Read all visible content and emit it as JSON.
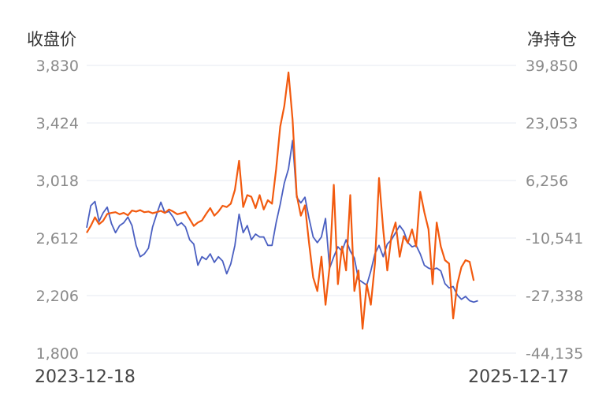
{
  "header": {
    "left_axis_title": "收盘价",
    "right_axis_title": "净持仓"
  },
  "footer": {
    "start_date": "2023-12-18",
    "end_date": "2025-12-17"
  },
  "chart_data": {
    "type": "line",
    "title": "",
    "grid": true,
    "x_range": [
      "2023-12-18",
      "2025-12-17"
    ],
    "left_axis": {
      "label": "收盘价",
      "range": [
        1800,
        3830
      ],
      "ticks": [
        "3,830",
        "3,424",
        "3,018",
        "2,612",
        "2,206",
        "1,800"
      ]
    },
    "right_axis": {
      "label": "净持仓",
      "range": [
        -44135,
        39850
      ],
      "ticks": [
        "39,850",
        "23,053",
        "6,256",
        "-10,541",
        "-27,338",
        "-44,135"
      ]
    },
    "series": [
      {
        "axis": "left",
        "color": "#4a5fc1",
        "points": [
          [
            "2023-12-18",
            2685
          ],
          [
            "2023-12-25",
            2840
          ],
          [
            "2024-01-01",
            2870
          ],
          [
            "2024-01-08",
            2730
          ],
          [
            "2024-01-15",
            2790
          ],
          [
            "2024-01-22",
            2830
          ],
          [
            "2024-01-29",
            2715
          ],
          [
            "2024-02-05",
            2650
          ],
          [
            "2024-02-12",
            2700
          ],
          [
            "2024-02-19",
            2720
          ],
          [
            "2024-02-26",
            2760
          ],
          [
            "2024-03-04",
            2700
          ],
          [
            "2024-03-11",
            2560
          ],
          [
            "2024-03-18",
            2480
          ],
          [
            "2024-03-25",
            2500
          ],
          [
            "2024-04-01",
            2540
          ],
          [
            "2024-04-08",
            2690
          ],
          [
            "2024-04-15",
            2780
          ],
          [
            "2024-04-22",
            2865
          ],
          [
            "2024-04-29",
            2790
          ],
          [
            "2024-05-06",
            2800
          ],
          [
            "2024-05-13",
            2760
          ],
          [
            "2024-05-20",
            2700
          ],
          [
            "2024-05-27",
            2720
          ],
          [
            "2024-06-03",
            2690
          ],
          [
            "2024-06-10",
            2600
          ],
          [
            "2024-06-17",
            2570
          ],
          [
            "2024-06-24",
            2420
          ],
          [
            "2024-07-01",
            2480
          ],
          [
            "2024-07-08",
            2460
          ],
          [
            "2024-07-15",
            2500
          ],
          [
            "2024-07-22",
            2440
          ],
          [
            "2024-07-29",
            2480
          ],
          [
            "2024-08-05",
            2450
          ],
          [
            "2024-08-12",
            2360
          ],
          [
            "2024-08-19",
            2430
          ],
          [
            "2024-08-26",
            2560
          ],
          [
            "2024-09-02",
            2780
          ],
          [
            "2024-09-09",
            2650
          ],
          [
            "2024-09-16",
            2700
          ],
          [
            "2024-09-23",
            2600
          ],
          [
            "2024-09-30",
            2640
          ],
          [
            "2024-10-07",
            2620
          ],
          [
            "2024-10-14",
            2620
          ],
          [
            "2024-10-21",
            2560
          ],
          [
            "2024-10-28",
            2560
          ],
          [
            "2024-11-04",
            2720
          ],
          [
            "2024-11-11",
            2850
          ],
          [
            "2024-11-18",
            3000
          ],
          [
            "2024-11-25",
            3100
          ],
          [
            "2024-12-02",
            3300
          ],
          [
            "2024-12-09",
            2900
          ],
          [
            "2024-12-16",
            2860
          ],
          [
            "2024-12-23",
            2900
          ],
          [
            "2024-12-30",
            2750
          ],
          [
            "2025-01-06",
            2620
          ],
          [
            "2025-01-13",
            2580
          ],
          [
            "2025-01-20",
            2620
          ],
          [
            "2025-01-27",
            2750
          ],
          [
            "2025-02-03",
            2400
          ],
          [
            "2025-02-10",
            2480
          ],
          [
            "2025-02-17",
            2550
          ],
          [
            "2025-02-24",
            2520
          ],
          [
            "2025-03-03",
            2600
          ],
          [
            "2025-03-10",
            2520
          ],
          [
            "2025-03-17",
            2470
          ],
          [
            "2025-03-24",
            2320
          ],
          [
            "2025-03-31",
            2300
          ],
          [
            "2025-04-07",
            2280
          ],
          [
            "2025-04-14",
            2380
          ],
          [
            "2025-04-21",
            2500
          ],
          [
            "2025-04-28",
            2560
          ],
          [
            "2025-05-05",
            2480
          ],
          [
            "2025-05-12",
            2570
          ],
          [
            "2025-05-19",
            2600
          ],
          [
            "2025-05-26",
            2650
          ],
          [
            "2025-06-02",
            2700
          ],
          [
            "2025-06-09",
            2660
          ],
          [
            "2025-06-16",
            2580
          ],
          [
            "2025-06-23",
            2550
          ],
          [
            "2025-06-30",
            2560
          ],
          [
            "2025-07-07",
            2500
          ],
          [
            "2025-07-14",
            2420
          ],
          [
            "2025-07-21",
            2400
          ],
          [
            "2025-07-28",
            2390
          ],
          [
            "2025-08-04",
            2400
          ],
          [
            "2025-08-11",
            2380
          ],
          [
            "2025-08-18",
            2290
          ],
          [
            "2025-08-25",
            2260
          ],
          [
            "2025-09-01",
            2270
          ],
          [
            "2025-09-08",
            2210
          ],
          [
            "2025-09-15",
            2180
          ],
          [
            "2025-09-22",
            2200
          ],
          [
            "2025-09-29",
            2170
          ],
          [
            "2025-10-06",
            2160
          ],
          [
            "2025-10-13",
            2170
          ]
        ]
      },
      {
        "axis": "right",
        "color": "#f25a0f",
        "points": [
          [
            "2023-12-18",
            -9000
          ],
          [
            "2023-12-25",
            -7000
          ],
          [
            "2024-01-01",
            -4500
          ],
          [
            "2024-01-08",
            -6500
          ],
          [
            "2024-01-15",
            -5500
          ],
          [
            "2024-01-22",
            -3500
          ],
          [
            "2024-01-29",
            -3200
          ],
          [
            "2024-02-05",
            -3000
          ],
          [
            "2024-02-12",
            -3600
          ],
          [
            "2024-02-19",
            -3200
          ],
          [
            "2024-02-26",
            -3900
          ],
          [
            "2024-03-04",
            -2500
          ],
          [
            "2024-03-11",
            -2800
          ],
          [
            "2024-03-18",
            -2400
          ],
          [
            "2024-03-25",
            -3000
          ],
          [
            "2024-04-01",
            -2800
          ],
          [
            "2024-04-08",
            -3300
          ],
          [
            "2024-04-15",
            -3000
          ],
          [
            "2024-04-22",
            -2600
          ],
          [
            "2024-04-29",
            -3200
          ],
          [
            "2024-05-06",
            -2200
          ],
          [
            "2024-05-13",
            -2800
          ],
          [
            "2024-05-20",
            -3600
          ],
          [
            "2024-05-27",
            -3300
          ],
          [
            "2024-06-03",
            -2900
          ],
          [
            "2024-06-10",
            -5000
          ],
          [
            "2024-06-17",
            -7000
          ],
          [
            "2024-06-24",
            -6000
          ],
          [
            "2024-07-01",
            -5400
          ],
          [
            "2024-07-08",
            -3500
          ],
          [
            "2024-07-15",
            -1800
          ],
          [
            "2024-07-22",
            -4000
          ],
          [
            "2024-07-29",
            -2800
          ],
          [
            "2024-08-05",
            -1100
          ],
          [
            "2024-08-12",
            -1500
          ],
          [
            "2024-08-19",
            -500
          ],
          [
            "2024-08-26",
            3500
          ],
          [
            "2024-09-02",
            12000
          ],
          [
            "2024-09-09",
            -1500
          ],
          [
            "2024-09-16",
            2000
          ],
          [
            "2024-09-23",
            1500
          ],
          [
            "2024-09-30",
            -1800
          ],
          [
            "2024-10-07",
            2000
          ],
          [
            "2024-10-14",
            -2200
          ],
          [
            "2024-10-21",
            500
          ],
          [
            "2024-10-28",
            -500
          ],
          [
            "2024-11-04",
            9500
          ],
          [
            "2024-11-11",
            22000
          ],
          [
            "2024-11-18",
            28000
          ],
          [
            "2024-11-25",
            37800
          ],
          [
            "2024-12-02",
            24000
          ],
          [
            "2024-12-09",
            2000
          ],
          [
            "2024-12-16",
            -4000
          ],
          [
            "2024-12-23",
            -1000
          ],
          [
            "2024-12-30",
            -12000
          ],
          [
            "2025-01-06",
            -22000
          ],
          [
            "2025-01-13",
            -26000
          ],
          [
            "2025-01-20",
            -16000
          ],
          [
            "2025-01-27",
            -30000
          ],
          [
            "2025-02-03",
            -19000
          ],
          [
            "2025-02-10",
            5000
          ],
          [
            "2025-02-17",
            -24000
          ],
          [
            "2025-02-24",
            -13000
          ],
          [
            "2025-03-03",
            -20000
          ],
          [
            "2025-03-10",
            2000
          ],
          [
            "2025-03-17",
            -26000
          ],
          [
            "2025-03-24",
            -20000
          ],
          [
            "2025-03-31",
            -37000
          ],
          [
            "2025-04-07",
            -24000
          ],
          [
            "2025-04-14",
            -30000
          ],
          [
            "2025-04-21",
            -18000
          ],
          [
            "2025-04-28",
            7000
          ],
          [
            "2025-05-05",
            -8000
          ],
          [
            "2025-05-12",
            -20000
          ],
          [
            "2025-05-19",
            -10000
          ],
          [
            "2025-05-26",
            -6000
          ],
          [
            "2025-06-02",
            -16000
          ],
          [
            "2025-06-09",
            -10000
          ],
          [
            "2025-06-16",
            -12000
          ],
          [
            "2025-06-23",
            -8000
          ],
          [
            "2025-06-30",
            -13000
          ],
          [
            "2025-07-07",
            3000
          ],
          [
            "2025-07-14",
            -3000
          ],
          [
            "2025-07-21",
            -8000
          ],
          [
            "2025-07-28",
            -24000
          ],
          [
            "2025-08-04",
            -6000
          ],
          [
            "2025-08-11",
            -13000
          ],
          [
            "2025-08-18",
            -17000
          ],
          [
            "2025-08-25",
            -18000
          ],
          [
            "2025-09-01",
            -34000
          ],
          [
            "2025-09-08",
            -24000
          ],
          [
            "2025-09-15",
            -19000
          ],
          [
            "2025-09-22",
            -17000
          ],
          [
            "2025-09-29",
            -17500
          ],
          [
            "2025-10-06",
            -23000
          ]
        ]
      }
    ]
  }
}
